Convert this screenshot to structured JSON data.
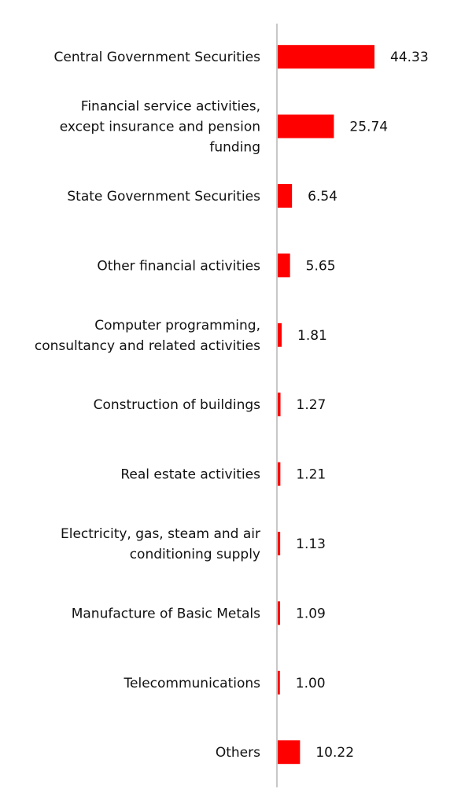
{
  "chart_data": {
    "type": "bar",
    "orientation": "horizontal",
    "categories": [
      "Central Government Securities",
      "Financial service activities, except insurance and pension funding",
      "State Government Securities",
      "Other financial activities",
      "Computer programming, consultancy and related activities",
      "Construction of buildings",
      "Real estate activities",
      "Electricity, gas, steam and air conditioning supply",
      "Manufacture of Basic Metals",
      "Telecommunications",
      "Others"
    ],
    "category_label_lines": [
      [
        "Central Government Securities"
      ],
      [
        "Financial service activities,",
        "except insurance and pension",
        "funding"
      ],
      [
        "State Government Securities"
      ],
      [
        "Other financial activities"
      ],
      [
        "Computer programming,",
        "consultancy and related activities"
      ],
      [
        "Construction of buildings"
      ],
      [
        "Real estate activities"
      ],
      [
        "Electricity, gas, steam and air",
        "conditioning supply"
      ],
      [
        "Manufacture of Basic Metals"
      ],
      [
        "Telecommunications"
      ],
      [
        "Others"
      ]
    ],
    "values": [
      44.33,
      25.74,
      6.54,
      5.65,
      1.81,
      1.27,
      1.21,
      1.13,
      1.09,
      1.0,
      10.22
    ],
    "value_labels": [
      "44.33",
      "25.74",
      "6.54",
      "5.65",
      "1.81",
      "1.27",
      "1.21",
      "1.13",
      "1.09",
      "1.00",
      "10.22"
    ],
    "title": "",
    "xlabel": "",
    "ylabel": "",
    "xlim": [
      0,
      45
    ],
    "grid": false,
    "legend": "none",
    "colors": {
      "bar": "#ff0000",
      "axis": "#c8c8c8",
      "text": "#111111"
    }
  }
}
